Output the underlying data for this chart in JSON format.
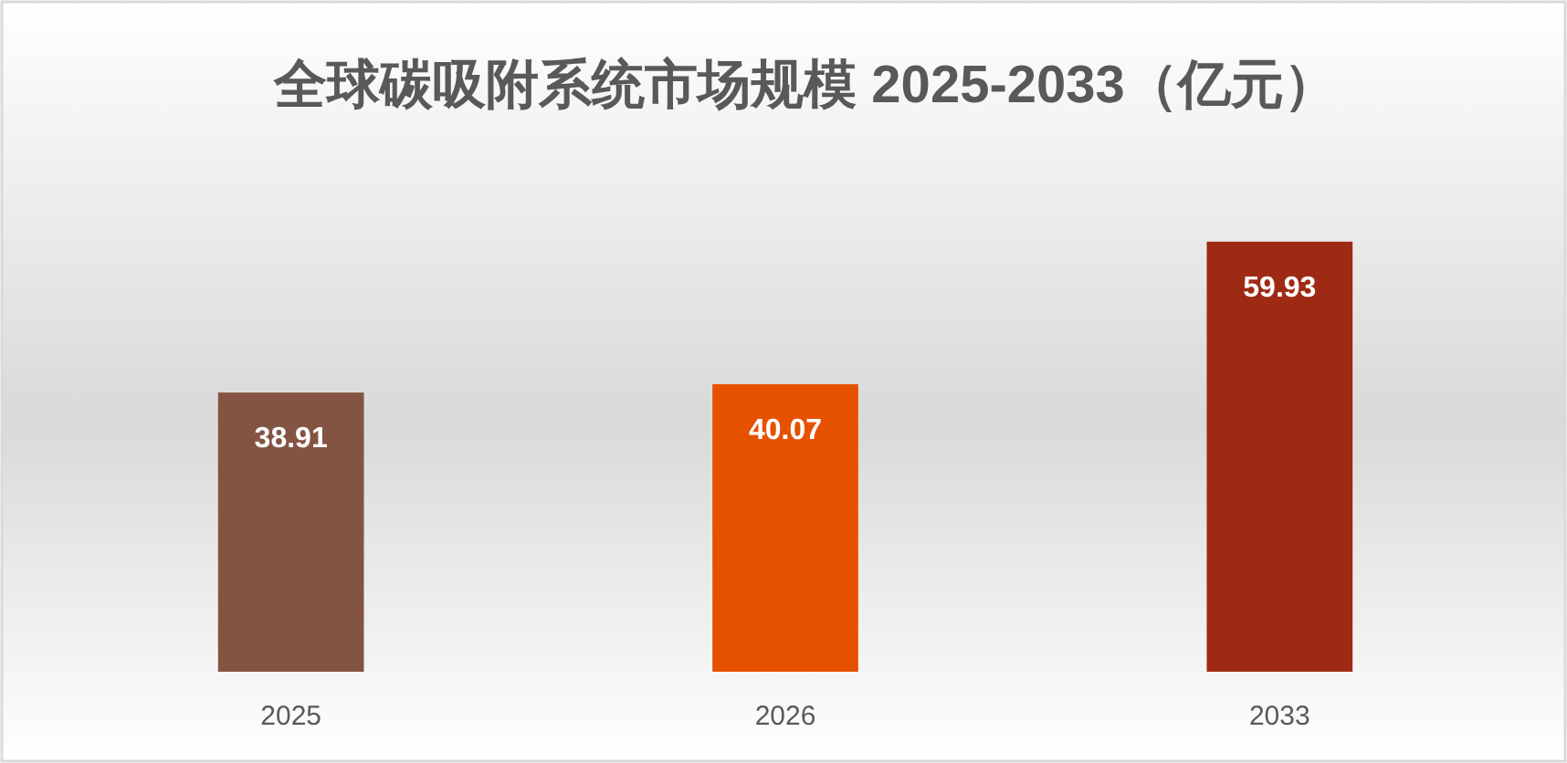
{
  "chart_data": {
    "type": "bar",
    "title": "全球碳吸附系统市场规模 2025-2033（亿元）",
    "categories": [
      "2025",
      "2026",
      "2033"
    ],
    "values": [
      38.91,
      40.07,
      59.93
    ],
    "colors": [
      "#845442",
      "#e65100",
      "#9e2a14"
    ],
    "data_labels": true
  }
}
